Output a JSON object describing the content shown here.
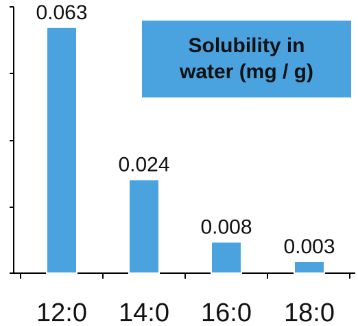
{
  "chart_data": {
    "type": "bar",
    "categories": [
      "12:0",
      "14:0",
      "16:0",
      "18:0"
    ],
    "values": [
      0.063,
      0.024,
      0.008,
      0.003
    ],
    "value_labels": [
      "0.063",
      "0.024",
      "0.008",
      "0.003"
    ],
    "title_lines": [
      "Solubility in",
      "water (mg / g)"
    ],
    "xlabel": "",
    "ylabel": "",
    "ylim": [
      0,
      0.07
    ],
    "y_tick_labels_shown": false,
    "grid": false,
    "legend": "none",
    "title_placement": "top-right box"
  },
  "colors": {
    "bar": "#4aa3df",
    "title_box": "#4aa3df",
    "axis": "#000000",
    "text": "#111111"
  }
}
